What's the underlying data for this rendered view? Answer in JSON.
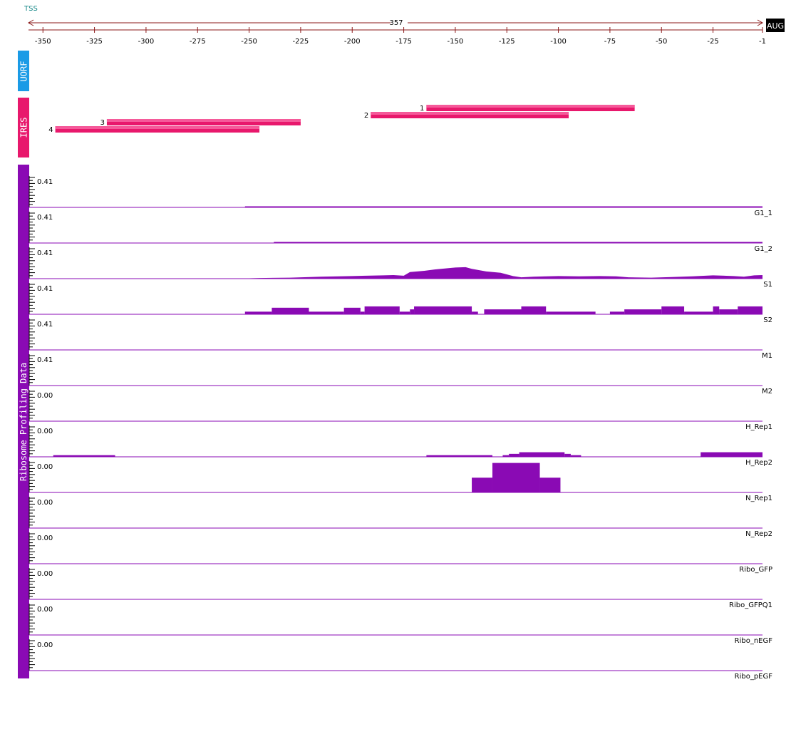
{
  "header": {
    "tss_label": "TSS",
    "span_label": "357",
    "aug_label": "AUG"
  },
  "colors": {
    "uorf": "#1a9be6",
    "ires_dark": "#e8186c",
    "ires_light": "#f55a9a",
    "ribo": "#8a0ab4",
    "axis": "#8b1a1a",
    "tss_text": "#1b8a8a"
  },
  "sections": {
    "uorf_label": "UORF",
    "ires_label": "IRES",
    "ribo_label": "Ribosome Profiling Data"
  },
  "chart_data": {
    "type": "area",
    "x_axis": {
      "min": -357,
      "max": -1,
      "ticks": [
        -350,
        -325,
        -300,
        -275,
        -250,
        -225,
        -200,
        -175,
        -150,
        -125,
        -100,
        -75,
        -50,
        -25,
        -1
      ]
    },
    "ires": [
      {
        "label": "1",
        "start": -164,
        "end": -63
      },
      {
        "label": "2",
        "start": -191,
        "end": -95
      },
      {
        "label": "3",
        "start": -319,
        "end": -225
      },
      {
        "label": "4",
        "start": -344,
        "end": -245
      }
    ],
    "tracks": [
      {
        "name": "G1_1",
        "ymax_label": "0.41",
        "segments": [
          [
            -252,
            -1,
            0.01
          ]
        ]
      },
      {
        "name": "G1_2",
        "ymax_label": "0.41",
        "segments": [
          [
            -238,
            -1,
            0.01
          ]
        ]
      },
      {
        "name": "S1",
        "ymax_label": "0.41",
        "points": [
          [
            -357,
            0
          ],
          [
            -250,
            0.01
          ],
          [
            -245,
            0.02
          ],
          [
            -230,
            0.03
          ],
          [
            -215,
            0.06
          ],
          [
            -200,
            0.08
          ],
          [
            -185,
            0.1
          ],
          [
            -180,
            0.11
          ],
          [
            -175,
            0.09
          ],
          [
            -172,
            0.2
          ],
          [
            -165,
            0.24
          ],
          [
            -160,
            0.28
          ],
          [
            -150,
            0.34
          ],
          [
            -145,
            0.35
          ],
          [
            -142,
            0.3
          ],
          [
            -135,
            0.22
          ],
          [
            -128,
            0.18
          ],
          [
            -122,
            0.08
          ],
          [
            -118,
            0.04
          ],
          [
            -112,
            0.06
          ],
          [
            -100,
            0.08
          ],
          [
            -90,
            0.07
          ],
          [
            -80,
            0.08
          ],
          [
            -72,
            0.07
          ],
          [
            -66,
            0.04
          ],
          [
            -55,
            0.03
          ],
          [
            -45,
            0.05
          ],
          [
            -35,
            0.07
          ],
          [
            -25,
            0.1
          ],
          [
            -15,
            0.08
          ],
          [
            -10,
            0.06
          ],
          [
            -5,
            0.1
          ],
          [
            -1,
            0.11
          ]
        ]
      },
      {
        "name": "S2",
        "ymax_label": "0.41",
        "segments": [
          [
            -252,
            -239,
            0.08
          ],
          [
            -239,
            -221,
            0.2
          ],
          [
            -221,
            -204,
            0.08
          ],
          [
            -204,
            -196,
            0.2
          ],
          [
            -196,
            -194,
            0.08
          ],
          [
            -194,
            -177,
            0.24
          ],
          [
            -177,
            -172,
            0.08
          ],
          [
            -172,
            -170,
            0.15
          ],
          [
            -170,
            -142,
            0.24
          ],
          [
            -142,
            -139,
            0.08
          ],
          [
            -136,
            -118,
            0.15
          ],
          [
            -118,
            -106,
            0.24
          ],
          [
            -106,
            -82,
            0.08
          ],
          [
            -75,
            -68,
            0.08
          ],
          [
            -68,
            -50,
            0.15
          ],
          [
            -50,
            -39,
            0.24
          ],
          [
            -39,
            -25,
            0.08
          ],
          [
            -25,
            -22,
            0.24
          ],
          [
            -22,
            -13,
            0.15
          ],
          [
            -13,
            -1,
            0.24
          ]
        ]
      },
      {
        "name": "M1",
        "ymax_label": "0.41",
        "segments": []
      },
      {
        "name": "M2",
        "ymax_label": "0.41",
        "segments": []
      },
      {
        "name": "H_Rep1",
        "ymax_label": "0.00",
        "segments": []
      },
      {
        "name": "H_Rep2",
        "ymax_label": "0.00",
        "segments": [
          [
            -345,
            -315,
            0.05
          ],
          [
            -164,
            -132,
            0.05
          ],
          [
            -127,
            -124,
            0.05
          ],
          [
            -124,
            -119,
            0.09
          ],
          [
            -119,
            -97,
            0.14
          ],
          [
            -97,
            -94,
            0.09
          ],
          [
            -94,
            -89,
            0.05
          ],
          [
            -31,
            -1,
            0.14
          ]
        ]
      },
      {
        "name": "N_Rep1",
        "ymax_label": "0.00",
        "segments": [
          [
            -142,
            -132,
            0.45
          ],
          [
            -132,
            -109,
            0.9
          ],
          [
            -109,
            -99,
            0.45
          ]
        ]
      },
      {
        "name": "N_Rep2",
        "ymax_label": "0.00",
        "segments": []
      },
      {
        "name": "Ribo_GFP",
        "ymax_label": "0.00",
        "segments": []
      },
      {
        "name": "Ribo_GFPQ1",
        "ymax_label": "0.00",
        "segments": []
      },
      {
        "name": "Ribo_nEGF",
        "ymax_label": "0.00",
        "segments": []
      },
      {
        "name": "Ribo_pEGF",
        "ymax_label": "0.00",
        "segments": []
      }
    ]
  }
}
